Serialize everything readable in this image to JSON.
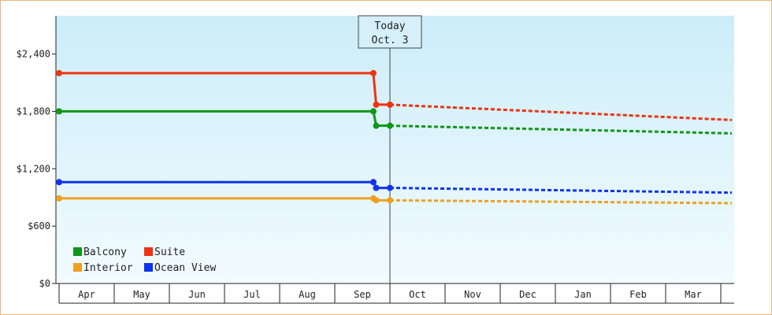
{
  "chart_data": {
    "type": "line",
    "categories": [
      "Apr",
      "May",
      "Jun",
      "Jul",
      "Aug",
      "Sep",
      "Oct",
      "Nov",
      "Dec",
      "Jan",
      "Feb",
      "Mar"
    ],
    "y_tick_labels": [
      "$0",
      "$600",
      "$1,200",
      "$1,800",
      "$2,400"
    ],
    "y_ticks": [
      0,
      600,
      1200,
      1800,
      2400
    ],
    "ylim": [
      0,
      2800
    ],
    "today": {
      "line1": "Today",
      "line2": "Oct. 3",
      "month_index": 6.0
    },
    "series": [
      {
        "name": "Balcony",
        "color": "#109618",
        "history": [
          [
            0,
            1800
          ],
          [
            5.7,
            1800
          ],
          [
            5.75,
            1650
          ],
          [
            6.0,
            1650
          ]
        ],
        "forecast": [
          [
            6.0,
            1650
          ],
          [
            12.2,
            1570
          ]
        ]
      },
      {
        "name": "Suite",
        "color": "#ee3311",
        "history": [
          [
            0,
            2200
          ],
          [
            5.7,
            2200
          ],
          [
            5.75,
            1870
          ],
          [
            6.0,
            1870
          ]
        ],
        "forecast": [
          [
            6.0,
            1870
          ],
          [
            12.2,
            1710
          ]
        ]
      },
      {
        "name": "Interior",
        "color": "#f0a020",
        "history": [
          [
            0,
            890
          ],
          [
            5.7,
            890
          ],
          [
            5.75,
            870
          ],
          [
            6.0,
            870
          ]
        ],
        "forecast": [
          [
            6.0,
            870
          ],
          [
            12.2,
            840
          ]
        ]
      },
      {
        "name": "Ocean View",
        "color": "#1133ee",
        "history": [
          [
            0,
            1060
          ],
          [
            5.7,
            1060
          ],
          [
            5.75,
            1000
          ],
          [
            6.0,
            1000
          ]
        ],
        "forecast": [
          [
            6.0,
            1000
          ],
          [
            12.2,
            950
          ]
        ]
      }
    ],
    "grid": false,
    "legend_position": "bottom-left"
  }
}
